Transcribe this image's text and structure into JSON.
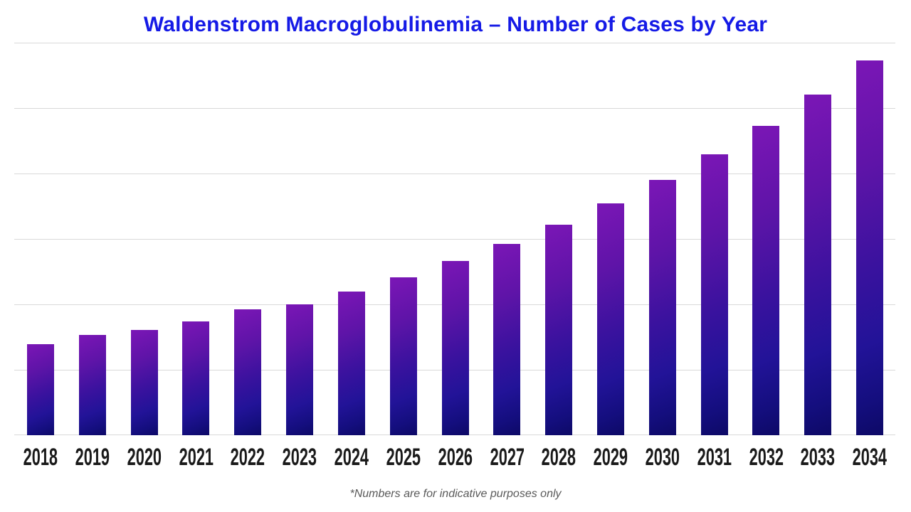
{
  "title": {
    "text": "Waldenstrom Macroglobulinemia – Number of Cases by Year",
    "color": "#151ae6"
  },
  "footnote": {
    "text": "*Numbers are for indicative purposes only",
    "color": "#595959"
  },
  "chart_data": {
    "type": "bar",
    "title": "Waldenstrom Macroglobulinemia – Number of Cases by Year",
    "categories": [
      "2018",
      "2019",
      "2020",
      "2021",
      "2022",
      "2023",
      "2024",
      "2025",
      "2026",
      "2027",
      "2028",
      "2029",
      "2030",
      "2031",
      "2032",
      "2033",
      "2034"
    ],
    "values": [
      128,
      141,
      148,
      160,
      177,
      184,
      202,
      222,
      245,
      269,
      296,
      326,
      359,
      395,
      435,
      479,
      527
    ],
    "xlabel": "",
    "ylabel": "",
    "ylim": [
      0,
      552
    ],
    "y_axis_tick_labels_visible": false,
    "gridline_count": 7,
    "grid_on": true,
    "legend": "none",
    "grid_color": "#d9d9d9",
    "xlabel_color": "#1a1a1a",
    "bar_gradient_stops": [
      "#7b16b6",
      "#5f14a8",
      "#3a129e",
      "#221398",
      "#140e7e",
      "#0d0966"
    ]
  }
}
